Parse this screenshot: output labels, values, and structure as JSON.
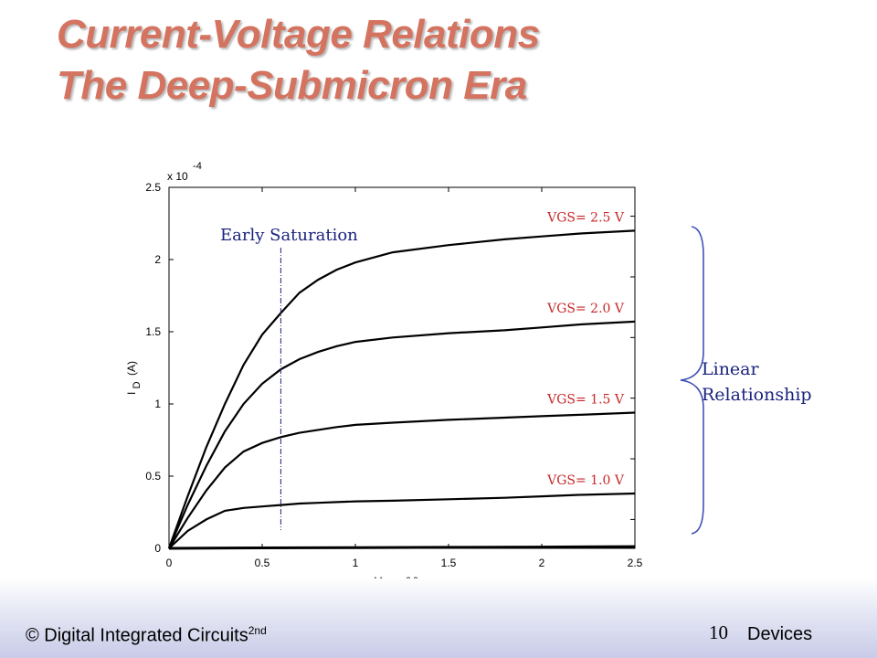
{
  "slide": {
    "title_line1": "Current-Voltage Relations",
    "title_line2": "The Deep-Submicron Era",
    "footer_left": "© Digital Integrated Circuits",
    "footer_left_sup": "2nd",
    "page_number": "10",
    "footer_right": "Devices",
    "brace_label_line1": "Linear",
    "brace_label_line2": "Relationship"
  },
  "colors": {
    "title": "#d4735f",
    "series_label": "#c62828",
    "annotation": "#1a237e"
  },
  "chart_data": {
    "type": "line",
    "xlabel_main": "V",
    "xlabel_sub": "DS",
    "xlabel_unit": "(V)",
    "ylabel_main": "I",
    "ylabel_sub": "D",
    "ylabel_unit": "(A)",
    "y_multiplier_base": "x 10",
    "y_multiplier_exp": "-4",
    "xlim": [
      0,
      2.5
    ],
    "ylim": [
      0,
      2.5
    ],
    "x_ticks": [
      "0",
      "0.5",
      "1",
      "1.5",
      "2",
      "2.5"
    ],
    "y_ticks": [
      "0",
      "0.5",
      "1",
      "1.5",
      "2",
      "2.5"
    ],
    "grid": false,
    "annotation_early_saturation": "Early Saturation",
    "early_saturation_x": 0.6,
    "series": [
      {
        "name": "VGS= 2.5 V",
        "x": [
          0,
          0.1,
          0.2,
          0.3,
          0.4,
          0.5,
          0.6,
          0.7,
          0.8,
          0.9,
          1.0,
          1.2,
          1.5,
          1.8,
          2.0,
          2.2,
          2.5
        ],
        "y": [
          0,
          0.36,
          0.7,
          1.0,
          1.27,
          1.48,
          1.63,
          1.77,
          1.86,
          1.93,
          1.98,
          2.05,
          2.1,
          2.14,
          2.16,
          2.18,
          2.2
        ]
      },
      {
        "name": "VGS= 2.0 V",
        "x": [
          0,
          0.1,
          0.2,
          0.3,
          0.4,
          0.5,
          0.6,
          0.7,
          0.8,
          0.9,
          1.0,
          1.2,
          1.5,
          1.8,
          2.0,
          2.2,
          2.5
        ],
        "y": [
          0,
          0.3,
          0.57,
          0.81,
          1.0,
          1.14,
          1.24,
          1.31,
          1.36,
          1.4,
          1.43,
          1.46,
          1.49,
          1.51,
          1.53,
          1.55,
          1.57
        ]
      },
      {
        "name": "VGS= 1.5 V",
        "x": [
          0,
          0.1,
          0.2,
          0.3,
          0.4,
          0.5,
          0.6,
          0.7,
          0.8,
          0.9,
          1.0,
          1.2,
          1.5,
          1.8,
          2.0,
          2.2,
          2.5
        ],
        "y": [
          0,
          0.21,
          0.4,
          0.56,
          0.67,
          0.73,
          0.77,
          0.8,
          0.82,
          0.84,
          0.855,
          0.87,
          0.89,
          0.905,
          0.915,
          0.925,
          0.94
        ]
      },
      {
        "name": "VGS= 1.0 V",
        "x": [
          0,
          0.1,
          0.2,
          0.3,
          0.4,
          0.5,
          0.6,
          0.7,
          0.8,
          0.9,
          1.0,
          1.2,
          1.5,
          1.8,
          2.0,
          2.2,
          2.5
        ],
        "y": [
          0,
          0.12,
          0.2,
          0.26,
          0.28,
          0.29,
          0.3,
          0.31,
          0.315,
          0.32,
          0.325,
          0.33,
          0.34,
          0.35,
          0.36,
          0.37,
          0.38
        ]
      },
      {
        "name": "",
        "x": [
          0,
          0.5,
          1.0,
          1.5,
          2.0,
          2.5
        ],
        "y": [
          0,
          0.003,
          0.005,
          0.007,
          0.009,
          0.012
        ]
      }
    ]
  }
}
